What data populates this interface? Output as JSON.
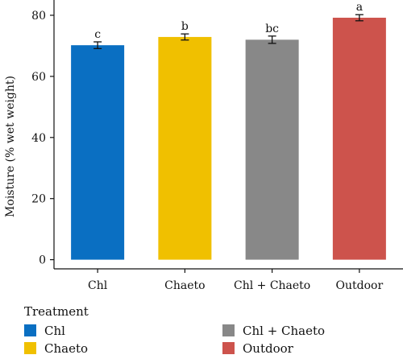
{
  "chart_data": {
    "type": "bar",
    "categories": [
      "Chl",
      "Chaeto",
      "Chl + Chaeto",
      "Outdoor"
    ],
    "series": [
      {
        "values": [
          70.2,
          72.9,
          72.0,
          79.2
        ],
        "errors": [
          1.1,
          1.0,
          1.2,
          1.0
        ],
        "colors": [
          "#0a6fc2",
          "#f0c000",
          "#888888",
          "#cd534c"
        ]
      }
    ],
    "significance_labels": [
      "c",
      "b",
      "bc",
      "a"
    ],
    "title": "",
    "xlabel": "",
    "ylabel": "Moisture (% wet weight)",
    "ylim": [
      -3,
      85
    ],
    "yticks": [
      0,
      20,
      40,
      60,
      80
    ],
    "grid": false,
    "legend": {
      "title": "Treatment",
      "placement": "bottom",
      "entries": [
        {
          "label": "Chl",
          "color": "#0a6fc2"
        },
        {
          "label": "Chaeto",
          "color": "#f0c000"
        },
        {
          "label": "Chl + Chaeto",
          "color": "#888888"
        },
        {
          "label": "Outdoor",
          "color": "#cd534c"
        }
      ]
    }
  }
}
